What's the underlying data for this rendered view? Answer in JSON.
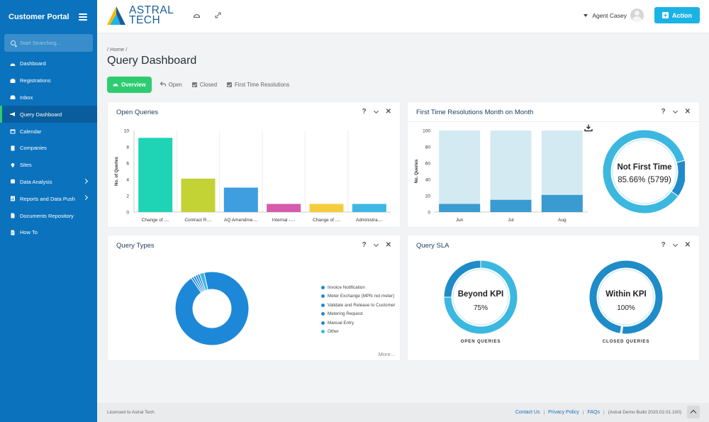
{
  "sidebar": {
    "title": "Customer Portal",
    "search_placeholder": "Start Searching...",
    "items": [
      {
        "label": "Dashboard",
        "icon": "dashboard-icon",
        "active": false,
        "chevron": false
      },
      {
        "label": "Registrations",
        "icon": "registrations-icon",
        "active": false,
        "chevron": false
      },
      {
        "label": "Inbox",
        "icon": "inbox-icon",
        "active": false,
        "chevron": false
      },
      {
        "label": "Query Dashboard",
        "icon": "megaphone-icon",
        "active": true,
        "chevron": false
      },
      {
        "label": "Calendar",
        "icon": "calendar-icon",
        "active": false,
        "chevron": false
      },
      {
        "label": "Companies",
        "icon": "building-icon",
        "active": false,
        "chevron": false
      },
      {
        "label": "Sites",
        "icon": "map-pin-icon",
        "active": false,
        "chevron": false
      },
      {
        "label": "Data Analysis",
        "icon": "database-icon",
        "active": false,
        "chevron": true
      },
      {
        "label": "Reports and Data Push",
        "icon": "report-icon",
        "active": false,
        "chevron": true
      },
      {
        "label": "Documents Repository",
        "icon": "document-icon",
        "active": false,
        "chevron": false
      },
      {
        "label": "How To",
        "icon": "help-document-icon",
        "active": false,
        "chevron": false
      }
    ]
  },
  "header": {
    "logo_line1": "ASTRAL",
    "logo_line2": "TECH",
    "user_name": "Agent Casey",
    "action_label": "Action"
  },
  "page": {
    "breadcrumb": "/ Home /",
    "title": "Query Dashboard",
    "tabs": [
      {
        "label": "Overview",
        "icon": "dashboard-icon",
        "active": true
      },
      {
        "label": "Open",
        "icon": "reply-icon",
        "active": false
      },
      {
        "label": "Closed",
        "icon": "checkbox-icon",
        "active": false
      },
      {
        "label": "First Time Resolutions",
        "icon": "checkbox-icon",
        "active": false
      }
    ]
  },
  "cards": {
    "open_queries": {
      "title": "Open Queries"
    },
    "first_time": {
      "title": "First Time Resolutions Month on Month"
    },
    "query_types": {
      "title": "Query Types",
      "more": "More..."
    },
    "query_sla": {
      "title": "Query SLA"
    }
  },
  "tool_glyphs": {
    "help": "?",
    "close": "✕"
  },
  "chart_data": [
    {
      "type": "bar",
      "title": "Open Queries",
      "ylabel": "No. of Queries",
      "ylim": [
        0,
        10
      ],
      "yticks": [
        0,
        2,
        4,
        6,
        8,
        10
      ],
      "categories": [
        "Change of ....",
        "Contract R....",
        "AQ Amendme....",
        "Internal -....",
        "Change of ....",
        "Administra...."
      ],
      "values": [
        9.1,
        4.1,
        3.0,
        1.0,
        1.0,
        1.0
      ],
      "colors": [
        "#1ed4b4",
        "#c3d235",
        "#3e9ee0",
        "#d65bab",
        "#f5cc3d",
        "#3eb7e6"
      ]
    },
    {
      "type": "bar",
      "title": "First Time Resolutions Month on Month",
      "ylabel": "No. Queries",
      "ylim": [
        0,
        100
      ],
      "yticks": [
        0,
        20,
        40,
        60,
        80,
        100
      ],
      "categories": [
        "Jun",
        "Jul",
        "Aug"
      ],
      "series": [
        {
          "values": [
            100,
            100,
            100
          ],
          "color": "#d4eaf3"
        },
        {
          "values": [
            10,
            15,
            21
          ],
          "color": "#3a9bd0"
        }
      ]
    },
    {
      "type": "pie",
      "title": "First Time Resolutions",
      "center_title": "Not First Time",
      "center_value": "85.66% (5799)",
      "slices": [
        {
          "label": "Not First Time",
          "value": 85.66,
          "color": "#3cb8e0"
        },
        {
          "label": "First Time",
          "value": 14.34,
          "color": "#1f8bc8"
        }
      ]
    },
    {
      "type": "pie",
      "title": "Query Types",
      "legend": [
        {
          "label": "Invoice Notification",
          "color": "#1e88d8"
        },
        {
          "label": "Meter Exchange (MPN not meter)",
          "color": "#1e88d8"
        },
        {
          "label": "Validate and Release to Customer",
          "color": "#1e88d8"
        },
        {
          "label": "Metering Request",
          "color": "#1e88d8"
        },
        {
          "label": "Manual Entry",
          "color": "#1e88d8"
        },
        {
          "label": "Other",
          "color": "#3eb7e6"
        }
      ],
      "slices": [
        {
          "label": "Invoice Notification",
          "value": 94,
          "color": "#1e88d8"
        },
        {
          "label": "Meter Exchange (MPN not meter)",
          "value": 1,
          "color": "#1e88d8"
        },
        {
          "label": "Validate and Release to Customer",
          "value": 1,
          "color": "#1e88d8"
        },
        {
          "label": "Metering Request",
          "value": 1,
          "color": "#1e88d8"
        },
        {
          "label": "Manual Entry",
          "value": 1,
          "color": "#1e88d8"
        },
        {
          "label": "Other",
          "value": 2,
          "color": "#3eb7e6"
        }
      ]
    },
    {
      "type": "pie",
      "title": "Query SLA",
      "gauges": [
        {
          "center_title": "Beyond KPI",
          "center_value": "75%",
          "label": "OPEN QUERIES",
          "value": 75,
          "color": "#3cb8e0",
          "rest_color": "#1f8bc8"
        },
        {
          "center_title": "Within KPI",
          "center_value": "100%",
          "label": "CLOSED QUERIES",
          "value": 100,
          "color": "#1f8bc8",
          "rest_color": "#3cb8e0"
        }
      ]
    }
  ],
  "footer": {
    "license": "Licensed to Astral Tech",
    "contact": "Contact Us",
    "privacy": "Privacy Policy",
    "faqs": "FAQs",
    "build": "(Astral Demo Build 2020.02.01.100)",
    "sep": "|"
  }
}
